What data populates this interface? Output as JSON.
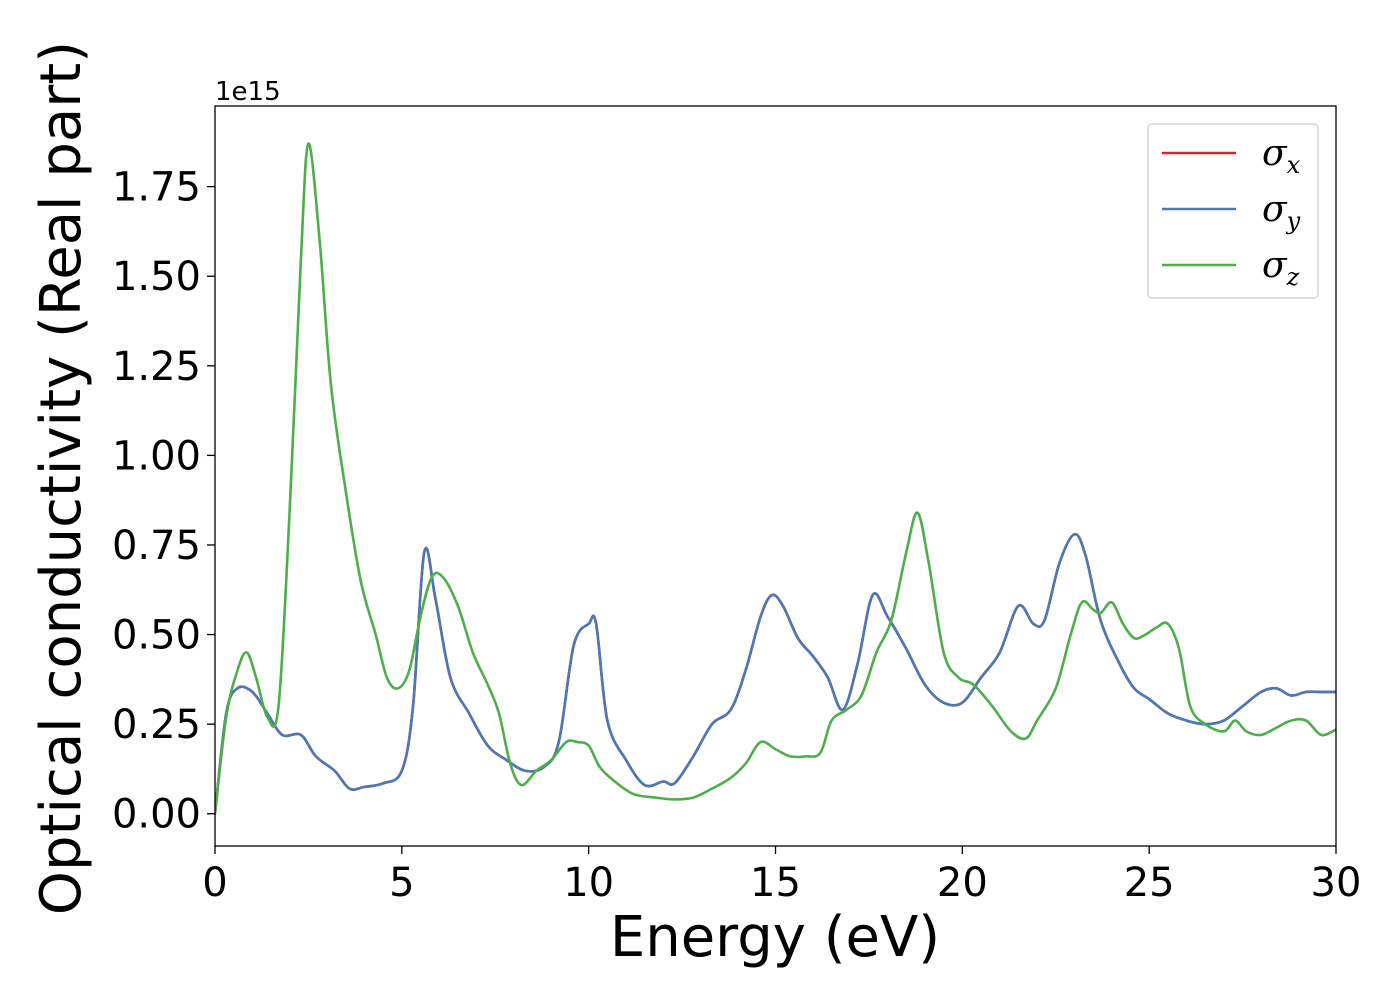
{
  "chart_data": {
    "type": "line",
    "xlabel": "Energy (eV)",
    "ylabel": "Optical conductivity (Real part)",
    "offset_text": "1e15",
    "scale": 1000000000000000.0,
    "xlim": [
      0,
      30
    ],
    "ylim": [
      -0.09,
      1.975
    ],
    "xticks": [
      0,
      5,
      10,
      15,
      20,
      25,
      30
    ],
    "yticks": [
      0.0,
      0.25,
      0.5,
      0.75,
      1.0,
      1.25,
      1.5,
      1.75
    ],
    "ytick_labels": [
      "0.00",
      "0.25",
      "0.50",
      "0.75",
      "1.00",
      "1.25",
      "1.50",
      "1.75"
    ],
    "grid": false,
    "legend_position": "top-right",
    "series": [
      {
        "name": "σ",
        "subscript": "x",
        "color": "#d62728",
        "x": [
          0,
          0.3,
          0.6,
          1.0,
          1.4,
          1.8,
          2.3,
          2.7,
          3.2,
          3.6,
          4.0,
          4.5,
          5.0,
          5.3,
          5.6,
          5.9,
          6.3,
          6.8,
          7.3,
          7.8,
          8.3,
          8.8,
          9.2,
          9.6,
          10.0,
          10.2,
          10.5,
          11.0,
          11.5,
          12.0,
          12.3,
          12.8,
          13.3,
          13.8,
          14.2,
          14.6,
          14.9,
          15.2,
          15.6,
          16.0,
          16.4,
          16.8,
          17.2,
          17.6,
          18.0,
          18.5,
          19.0,
          19.5,
          20.0,
          20.5,
          21.0,
          21.5,
          21.9,
          22.2,
          22.6,
          23.0,
          23.3,
          23.7,
          24.2,
          24.6,
          25.0,
          25.5,
          26.0,
          26.5,
          27.0,
          27.5,
          28.0,
          28.4,
          28.8,
          29.2,
          29.6,
          30.0
        ],
        "values": [
          0.0,
          0.28,
          0.35,
          0.34,
          0.28,
          0.22,
          0.22,
          0.16,
          0.12,
          0.07,
          0.075,
          0.085,
          0.12,
          0.3,
          0.73,
          0.6,
          0.38,
          0.28,
          0.19,
          0.15,
          0.12,
          0.13,
          0.2,
          0.47,
          0.53,
          0.53,
          0.26,
          0.15,
          0.08,
          0.09,
          0.085,
          0.16,
          0.25,
          0.29,
          0.4,
          0.55,
          0.61,
          0.58,
          0.49,
          0.44,
          0.38,
          0.29,
          0.42,
          0.61,
          0.55,
          0.46,
          0.36,
          0.31,
          0.31,
          0.38,
          0.45,
          0.58,
          0.53,
          0.54,
          0.7,
          0.78,
          0.72,
          0.54,
          0.42,
          0.35,
          0.32,
          0.28,
          0.26,
          0.25,
          0.26,
          0.3,
          0.34,
          0.35,
          0.33,
          0.34,
          0.34,
          0.34
        ]
      },
      {
        "name": "σ",
        "subscript": "y",
        "color": "#4a7ab6",
        "x": [
          0,
          0.3,
          0.6,
          1.0,
          1.4,
          1.8,
          2.3,
          2.7,
          3.2,
          3.6,
          4.0,
          4.5,
          5.0,
          5.3,
          5.6,
          5.9,
          6.3,
          6.8,
          7.3,
          7.8,
          8.3,
          8.8,
          9.2,
          9.6,
          10.0,
          10.2,
          10.5,
          11.0,
          11.5,
          12.0,
          12.3,
          12.8,
          13.3,
          13.8,
          14.2,
          14.6,
          14.9,
          15.2,
          15.6,
          16.0,
          16.4,
          16.8,
          17.2,
          17.6,
          18.0,
          18.5,
          19.0,
          19.5,
          20.0,
          20.5,
          21.0,
          21.5,
          21.9,
          22.2,
          22.6,
          23.0,
          23.3,
          23.7,
          24.2,
          24.6,
          25.0,
          25.5,
          26.0,
          26.5,
          27.0,
          27.5,
          28.0,
          28.4,
          28.8,
          29.2,
          29.6,
          30.0
        ],
        "values": [
          0.0,
          0.28,
          0.35,
          0.34,
          0.28,
          0.22,
          0.22,
          0.16,
          0.12,
          0.07,
          0.075,
          0.085,
          0.12,
          0.3,
          0.73,
          0.6,
          0.38,
          0.28,
          0.19,
          0.15,
          0.12,
          0.13,
          0.2,
          0.47,
          0.53,
          0.53,
          0.26,
          0.15,
          0.08,
          0.09,
          0.085,
          0.16,
          0.25,
          0.29,
          0.4,
          0.55,
          0.61,
          0.58,
          0.49,
          0.44,
          0.38,
          0.29,
          0.42,
          0.61,
          0.55,
          0.46,
          0.36,
          0.31,
          0.31,
          0.38,
          0.45,
          0.58,
          0.53,
          0.54,
          0.7,
          0.78,
          0.72,
          0.54,
          0.42,
          0.35,
          0.32,
          0.28,
          0.26,
          0.25,
          0.26,
          0.3,
          0.34,
          0.35,
          0.33,
          0.34,
          0.34,
          0.34
        ]
      },
      {
        "name": "σ",
        "subscript": "z",
        "color": "#4daf4a",
        "x": [
          0,
          0.3,
          0.6,
          0.85,
          1.1,
          1.4,
          1.7,
          2.0,
          2.3,
          2.5,
          2.8,
          3.1,
          3.5,
          3.9,
          4.3,
          4.6,
          4.9,
          5.2,
          5.5,
          5.8,
          6.1,
          6.5,
          6.9,
          7.3,
          7.6,
          7.9,
          8.2,
          8.6,
          9.0,
          9.4,
          9.7,
          10.0,
          10.3,
          10.7,
          11.2,
          11.8,
          12.3,
          12.8,
          13.3,
          13.8,
          14.2,
          14.6,
          15.0,
          15.4,
          15.8,
          16.2,
          16.5,
          16.9,
          17.3,
          17.7,
          18.1,
          18.5,
          18.8,
          19.1,
          19.5,
          19.9,
          20.3,
          20.8,
          21.3,
          21.7,
          22.0,
          22.5,
          22.9,
          23.2,
          23.5,
          23.7,
          24.0,
          24.3,
          24.6,
          24.9,
          25.2,
          25.5,
          25.8,
          26.1,
          26.5,
          27.0,
          27.3,
          27.6,
          28.0,
          28.4,
          28.8,
          29.2,
          29.6,
          30.0
        ],
        "values": [
          0.0,
          0.27,
          0.4,
          0.45,
          0.38,
          0.27,
          0.3,
          0.85,
          1.55,
          1.87,
          1.6,
          1.2,
          0.9,
          0.65,
          0.5,
          0.38,
          0.35,
          0.4,
          0.55,
          0.66,
          0.66,
          0.58,
          0.45,
          0.36,
          0.28,
          0.14,
          0.08,
          0.12,
          0.15,
          0.2,
          0.2,
          0.19,
          0.13,
          0.09,
          0.055,
          0.045,
          0.04,
          0.045,
          0.07,
          0.1,
          0.14,
          0.2,
          0.18,
          0.16,
          0.16,
          0.17,
          0.26,
          0.29,
          0.33,
          0.45,
          0.54,
          0.73,
          0.84,
          0.7,
          0.45,
          0.38,
          0.36,
          0.3,
          0.23,
          0.21,
          0.26,
          0.35,
          0.5,
          0.59,
          0.57,
          0.56,
          0.59,
          0.53,
          0.49,
          0.5,
          0.52,
          0.53,
          0.46,
          0.3,
          0.25,
          0.23,
          0.26,
          0.23,
          0.22,
          0.24,
          0.26,
          0.26,
          0.22,
          0.235
        ]
      }
    ]
  }
}
